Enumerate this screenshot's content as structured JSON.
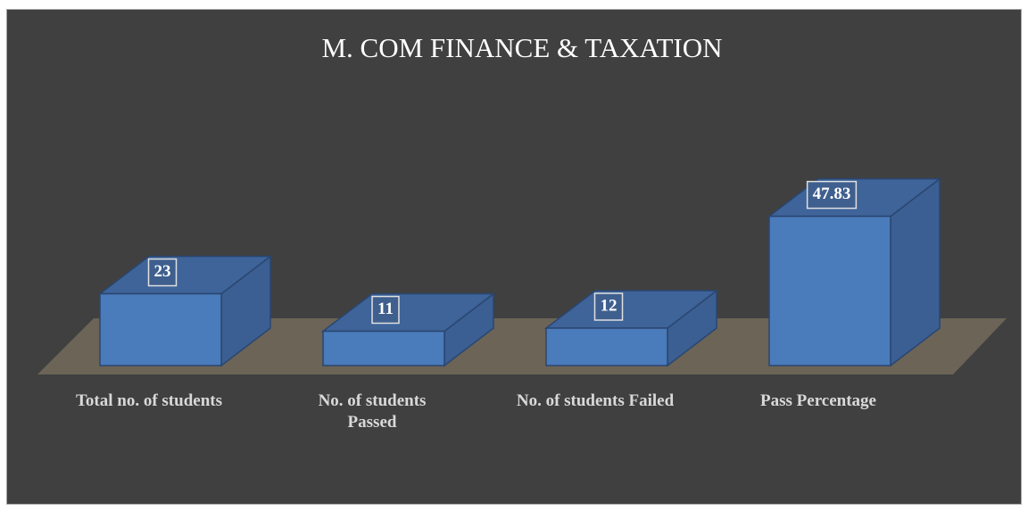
{
  "chart_data": {
    "type": "bar3d",
    "title": "M. COM FINANCE & TAXATION",
    "categories": [
      "Total no. of students",
      "No. of students Passed",
      "No. of students Failed",
      "Pass Percentage"
    ],
    "values": [
      23,
      11,
      12,
      47.83
    ],
    "color": "#4a7bbb"
  }
}
